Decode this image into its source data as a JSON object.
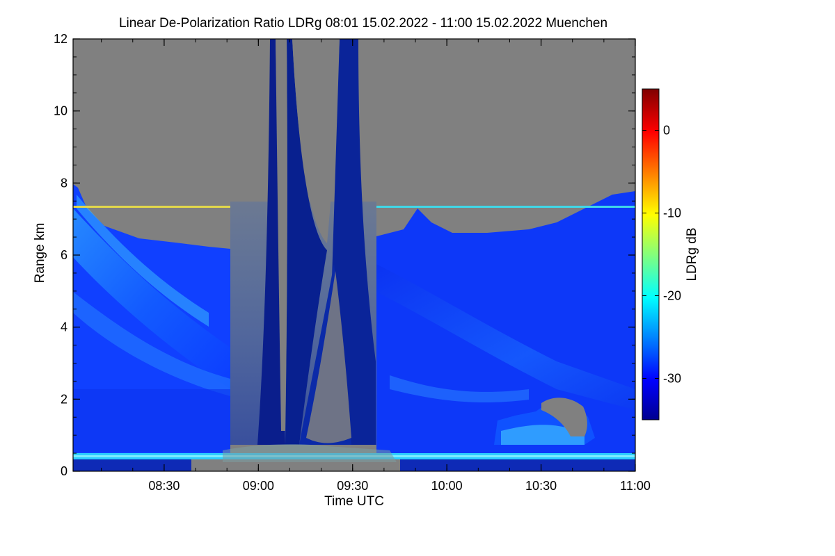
{
  "chart_data": {
    "type": "heatmap",
    "title": "Linear De-Polarization Ratio LDRg   08:01 15.02.2022 - 11:00 15.02.2022 Muenchen",
    "xlabel": "Time UTC",
    "ylabel": "Range km",
    "colorbar_label": "LDRg dB",
    "x_range": [
      "08:01",
      "11:00"
    ],
    "x_ticks": [
      "08:30",
      "09:00",
      "09:30",
      "10:00",
      "10:30",
      "11:00"
    ],
    "ylim": [
      0,
      12
    ],
    "y_ticks": [
      "0",
      "2",
      "4",
      "6",
      "8",
      "10",
      "12"
    ],
    "color_range_db": [
      -35,
      5
    ],
    "colorbar_ticks": [
      "0",
      "-10",
      "-20",
      "-30"
    ],
    "colormap": [
      "#00008f",
      "#0000ff",
      "#00ffff",
      "#ffff00",
      "#ff0000",
      "#800000"
    ],
    "no_signal_color": "#808080",
    "features": [
      {
        "kind": "cloud_layer",
        "range_km": [
          0.2,
          6.2
        ],
        "ldr_db": -28
      },
      {
        "kind": "thin_layer",
        "range_km": 7.3,
        "ldr_db": -19
      },
      {
        "kind": "surface_layer",
        "range_km": 0.3,
        "ldr_db": -20
      },
      {
        "kind": "clear_gap",
        "time_utc": [
          "09:02",
          "09:37"
        ]
      },
      {
        "kind": "low_cloud",
        "time_utc": [
          "10:23",
          "10:50"
        ],
        "range_km": [
          0.5,
          2.0
        ],
        "ldr_db": -21
      }
    ]
  }
}
